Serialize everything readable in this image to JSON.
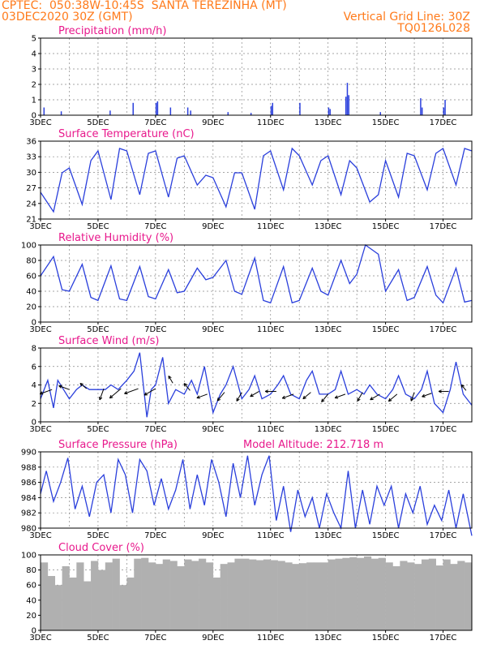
{
  "header": {
    "line1_left": "CPTEC:  050:38W-10:45S  SANTA TEREZINHA (MT)",
    "line2_left": "03DEC2020 30Z (GMT)",
    "line2_right": "Vertical Grid Line: 30Z",
    "line3_right": "TQ0126L028",
    "color": "#ff7a1a"
  },
  "colors": {
    "series": "#2a3fdc",
    "title": "#e8188c",
    "cloud": "#b0b0b0",
    "wind_arrow": "#000000"
  },
  "chart_data": [
    {
      "id": "precip",
      "type": "bar",
      "title": "Precipitation (mm/h)",
      "ylim": [
        0,
        5
      ],
      "yticks": [
        "0",
        "1",
        "2",
        "3",
        "4",
        "5"
      ],
      "xticks": [
        "3DEC",
        "5DEC",
        "7DEC",
        "9DEC",
        "11DEC",
        "13DEC",
        "15DEC",
        "17DEC"
      ],
      "day_start": 3,
      "day_end": 18,
      "x_day": [
        3.1,
        3.7,
        5.4,
        6.2,
        7.0,
        7.05,
        7.5,
        8.1,
        8.2,
        9.5,
        10.3,
        11.0,
        11.05,
        12.0,
        13.0,
        13.05,
        13.6,
        13.65,
        13.7,
        14.8,
        16.2,
        16.25,
        17.0,
        17.05
      ],
      "values": [
        0.5,
        0.25,
        0.3,
        0.8,
        0.8,
        0.9,
        0.5,
        0.5,
        0.3,
        0.2,
        0.15,
        0.6,
        0.8,
        0.8,
        0.5,
        0.4,
        1.2,
        2.1,
        1.3,
        0.2,
        1.1,
        0.5,
        0.5,
        1.0
      ],
      "grid": true
    },
    {
      "id": "temp",
      "type": "line",
      "title": "Surface Temperature (nC)",
      "ylim": [
        21,
        37
      ],
      "yticks": [
        "21",
        "24",
        "27",
        "30",
        "33",
        "36"
      ],
      "xticks": [
        "3DEC",
        "5DEC",
        "7DEC",
        "9DEC",
        "11DEC",
        "13DEC",
        "15DEC",
        "17DEC"
      ],
      "day_start": 3,
      "day_end": 18,
      "x_day": [
        3.0,
        3.45,
        3.75,
        4.0,
        4.45,
        4.75,
        5.0,
        5.45,
        5.75,
        6.0,
        6.45,
        6.75,
        7.0,
        7.45,
        7.75,
        8.0,
        8.45,
        8.75,
        9.0,
        9.45,
        9.75,
        10.0,
        10.45,
        10.75,
        11.0,
        11.45,
        11.75,
        12.0,
        12.45,
        12.75,
        13.0,
        13.45,
        13.75,
        14.0,
        14.45,
        14.75,
        15.0,
        15.45,
        15.75,
        16.0,
        16.45,
        16.75,
        17.0,
        17.45,
        17.75,
        18.0
      ],
      "values": [
        26.5,
        22.5,
        30.5,
        31.5,
        24,
        33,
        35,
        25,
        35.5,
        35,
        26,
        34.5,
        35,
        25.5,
        33.5,
        34,
        28,
        30,
        29.5,
        23.5,
        30.5,
        30.5,
        23,
        34,
        35,
        27,
        35.5,
        34,
        28,
        33,
        34,
        26,
        33,
        31.5,
        24.5,
        26,
        33,
        25.5,
        34.5,
        34,
        27,
        34.5,
        35.5,
        28,
        35.5,
        35
      ],
      "grid": true
    },
    {
      "id": "rh",
      "type": "line",
      "title": "Relative Humidity (%)",
      "ylim": [
        0,
        100
      ],
      "yticks": [
        "0",
        "20",
        "40",
        "60",
        "80",
        "100"
      ],
      "xticks": [
        "3DEC",
        "5DEC",
        "7DEC",
        "9DEC",
        "11DEC",
        "13DEC",
        "15DEC",
        "17DEC"
      ],
      "day_start": 3,
      "day_end": 18,
      "x_day": [
        3.0,
        3.45,
        3.75,
        4.0,
        4.45,
        4.75,
        5.0,
        5.45,
        5.75,
        6.0,
        6.45,
        6.75,
        7.0,
        7.45,
        7.75,
        8.0,
        8.45,
        8.75,
        9.0,
        9.45,
        9.75,
        10.0,
        10.45,
        10.75,
        11.0,
        11.45,
        11.75,
        12.0,
        12.45,
        12.75,
        13.0,
        13.45,
        13.75,
        14.0,
        14.3,
        14.75,
        15.0,
        15.45,
        15.75,
        16.0,
        16.45,
        16.75,
        17.0,
        17.45,
        17.75,
        18.0
      ],
      "values": [
        60,
        85,
        42,
        40,
        75,
        32,
        28,
        73,
        30,
        28,
        72,
        33,
        30,
        68,
        38,
        40,
        70,
        55,
        58,
        80,
        40,
        36,
        83,
        28,
        25,
        72,
        25,
        28,
        70,
        40,
        35,
        80,
        50,
        62,
        100,
        88,
        40,
        68,
        28,
        32,
        72,
        35,
        25,
        70,
        26,
        28
      ],
      "grid": true
    },
    {
      "id": "wind",
      "type": "line",
      "title": "Surface Wind (m/s)",
      "ylim": [
        0,
        8
      ],
      "yticks": [
        "0",
        "2",
        "4",
        "6",
        "8"
      ],
      "xticks": [
        "3DEC",
        "5DEC",
        "7DEC",
        "9DEC",
        "11DEC",
        "13DEC",
        "15DEC",
        "17DEC"
      ],
      "day_start": 3,
      "day_end": 18,
      "x_day": [
        3.0,
        3.25,
        3.45,
        3.6,
        3.8,
        4.0,
        4.25,
        4.45,
        4.7,
        5.0,
        5.25,
        5.45,
        5.7,
        6.0,
        6.25,
        6.45,
        6.7,
        6.85,
        7.0,
        7.25,
        7.45,
        7.7,
        8.0,
        8.25,
        8.45,
        8.7,
        9.0,
        9.25,
        9.45,
        9.7,
        10.0,
        10.25,
        10.45,
        10.7,
        11.0,
        11.25,
        11.45,
        11.7,
        12.0,
        12.25,
        12.45,
        12.7,
        13.0,
        13.25,
        13.45,
        13.7,
        14.0,
        14.25,
        14.45,
        14.7,
        15.0,
        15.25,
        15.45,
        15.7,
        16.0,
        16.25,
        16.45,
        16.7,
        17.0,
        17.25,
        17.45,
        17.7,
        18.0
      ],
      "values": [
        2.5,
        4.5,
        1.5,
        4.5,
        3.5,
        2.5,
        3.5,
        4,
        3.5,
        3.5,
        3.5,
        4,
        3.5,
        4.5,
        5.5,
        7.5,
        0.5,
        3.5,
        4,
        7,
        2,
        3.5,
        3,
        4.5,
        3,
        6,
        1,
        3,
        4,
        6,
        2.5,
        3.5,
        5,
        2.5,
        3,
        4,
        5,
        3,
        2.5,
        4.5,
        5.5,
        3,
        3,
        3.5,
        5.5,
        3,
        3.5,
        3,
        4,
        3,
        2.5,
        3.5,
        5,
        3,
        2.5,
        3.5,
        5.5,
        2,
        1,
        3.5,
        6.5,
        3,
        1.8
      ],
      "arrows": {
        "x_day": [
          3.4,
          4.0,
          4.6,
          5.2,
          5.8,
          6.4,
          7.0,
          7.6,
          8.2,
          8.8,
          9.4,
          10.0,
          10.6,
          11.2,
          11.8,
          12.4,
          13.0,
          13.6,
          14.2,
          14.8,
          15.4,
          16.0,
          16.6,
          17.2,
          17.8
        ],
        "y": [
          3.5,
          3.5,
          3.6,
          3.6,
          3.6,
          3.6,
          3.6,
          4.2,
          3.4,
          3.0,
          3.2,
          3.2,
          3.3,
          3.3,
          3.0,
          3.2,
          3.0,
          3.0,
          3.2,
          3.0,
          3.0,
          3.2,
          3.1,
          3.3,
          3.4
        ],
        "dir_deg": [
          200,
          160,
          140,
          250,
          220,
          200,
          210,
          120,
          130,
          200,
          230,
          240,
          210,
          180,
          200,
          220,
          230,
          200,
          240,
          210,
          220,
          250,
          200,
          180,
          130
        ],
        "len": [
          1.4,
          1.2,
          0.9,
          1.3,
          1.6,
          1.6,
          1.4,
          0.9,
          1.0,
          1.2,
          1.2,
          1.1,
          1.1,
          1.2,
          1.3,
          1.1,
          1.1,
          1.2,
          1.1,
          1.2,
          1.2,
          1.0,
          1.1,
          1.1,
          0.8
        ]
      },
      "grid": true
    },
    {
      "id": "pres",
      "type": "line",
      "title": "Surface Pressure (hPa)",
      "subtitle": "Model Altitude: 212.718  m",
      "ylim": [
        980,
        990
      ],
      "yticks": [
        "980",
        "982",
        "984",
        "986",
        "988",
        "990"
      ],
      "xticks": [
        "3DEC",
        "5DEC",
        "7DEC",
        "9DEC",
        "11DEC",
        "13DEC",
        "15DEC",
        "17DEC"
      ],
      "day_start": 3,
      "day_end": 18,
      "x_day": [
        3.0,
        3.2,
        3.45,
        3.7,
        3.95,
        4.2,
        4.45,
        4.7,
        4.95,
        5.2,
        5.45,
        5.7,
        5.95,
        6.2,
        6.45,
        6.7,
        6.95,
        7.2,
        7.45,
        7.7,
        7.95,
        8.2,
        8.45,
        8.7,
        8.95,
        9.2,
        9.45,
        9.7,
        9.95,
        10.2,
        10.45,
        10.7,
        10.95,
        11.2,
        11.45,
        11.7,
        11.95,
        12.2,
        12.45,
        12.7,
        12.95,
        13.2,
        13.45,
        13.7,
        13.95,
        14.2,
        14.45,
        14.7,
        14.95,
        15.2,
        15.45,
        15.7,
        15.95,
        16.2,
        16.45,
        16.7,
        16.95,
        17.2,
        17.45,
        17.7,
        18.0
      ],
      "values": [
        984.5,
        987.5,
        983.5,
        986,
        989.2,
        982.5,
        985.5,
        981.5,
        986,
        987,
        982,
        989,
        987,
        982,
        989,
        987.5,
        983,
        986.5,
        982.5,
        985,
        989,
        982.5,
        987,
        983,
        989,
        986,
        981.5,
        988.5,
        984,
        989.5,
        983,
        987,
        989.5,
        981,
        985.5,
        979.5,
        985,
        981.5,
        984,
        980,
        984.5,
        982,
        980,
        987.5,
        980,
        985,
        980.5,
        985.5,
        983,
        985.5,
        980,
        984.5,
        982,
        985.5,
        980.5,
        983,
        981,
        985,
        980,
        984.5,
        979
      ],
      "grid": true
    },
    {
      "id": "cloud",
      "type": "bar",
      "title": "Cloud Cover (%)",
      "ylim": [
        0,
        100
      ],
      "yticks": [
        "0",
        "20",
        "40",
        "60",
        "80",
        "100"
      ],
      "xticks": [
        "3DEC",
        "5DEC",
        "7DEC",
        "9DEC",
        "11DEC",
        "13DEC",
        "15DEC",
        "17DEC"
      ],
      "day_start": 3,
      "day_end": 18,
      "x_day": [
        3.0,
        3.25,
        3.5,
        3.75,
        4.0,
        4.25,
        4.5,
        4.75,
        5.0,
        5.25,
        5.5,
        5.75,
        6.0,
        6.25,
        6.5,
        6.75,
        7.0,
        7.25,
        7.5,
        7.75,
        8.0,
        8.25,
        8.5,
        8.75,
        9.0,
        9.25,
        9.5,
        9.75,
        10.0,
        10.25,
        10.5,
        10.75,
        11.0,
        11.25,
        11.5,
        11.75,
        12.0,
        12.25,
        12.5,
        12.75,
        13.0,
        13.25,
        13.5,
        13.75,
        14.0,
        14.25,
        14.5,
        14.75,
        15.0,
        15.25,
        15.5,
        15.75,
        16.0,
        16.25,
        16.5,
        16.75,
        17.0,
        17.25,
        17.5,
        17.75
      ],
      "values": [
        90,
        72,
        60,
        85,
        70,
        90,
        65,
        92,
        80,
        90,
        95,
        60,
        70,
        95,
        96,
        90,
        88,
        94,
        92,
        85,
        94,
        92,
        95,
        90,
        70,
        88,
        90,
        95,
        95,
        94,
        93,
        94,
        93,
        92,
        90,
        88,
        89,
        90,
        90,
        90,
        94,
        95,
        96,
        97,
        96,
        98,
        95,
        96,
        90,
        85,
        92,
        90,
        88,
        94,
        95,
        86,
        94,
        88,
        92,
        90
      ],
      "grid": true
    }
  ]
}
